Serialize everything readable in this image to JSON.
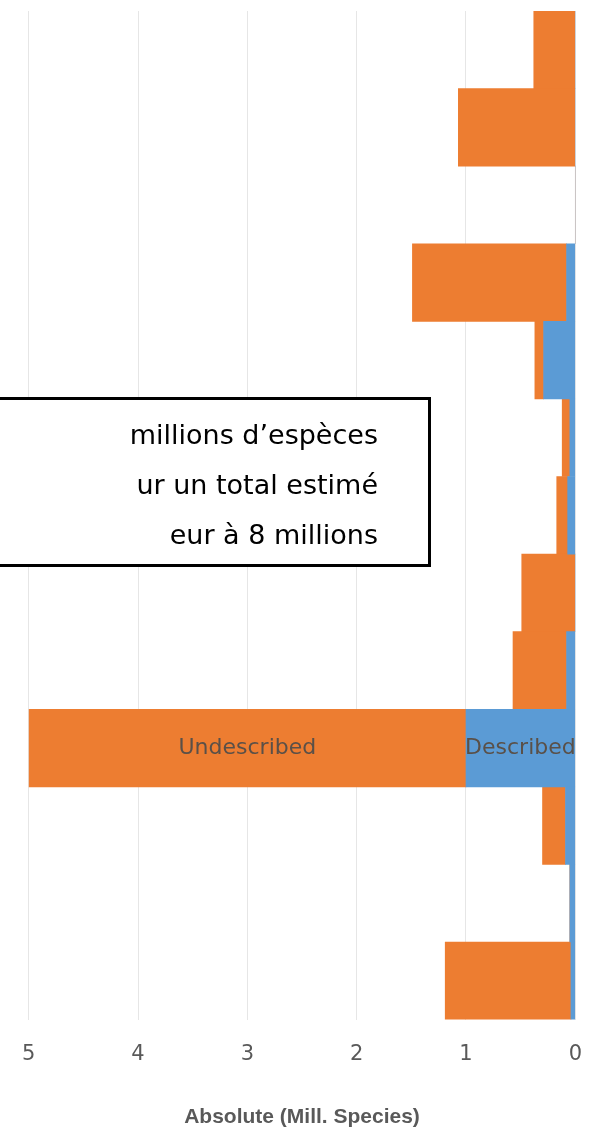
{
  "chart_data": {
    "type": "bar",
    "orientation": "horizontal",
    "stacked": true,
    "xlabel": "Absolute (Mill. Species)",
    "categories": [
      null,
      null,
      null,
      null,
      null,
      null,
      null,
      null,
      null,
      null,
      null,
      null,
      null
    ],
    "series": [
      {
        "name": "Described",
        "color": "#5b9bd5",
        "values": [
          0,
          0,
          0,
          0.08,
          0.29,
          0.05,
          0.07,
          0,
          0.08,
          1.0,
          0.09,
          0.05,
          0.04
        ]
      },
      {
        "name": "Undescribed",
        "color": "#ed7d31",
        "values": [
          0.38,
          1.07,
          0,
          1.41,
          0.08,
          0.07,
          0.1,
          0.49,
          0.49,
          4.0,
          0.21,
          0,
          1.15
        ]
      }
    ],
    "xlim": [
      5,
      0
    ],
    "xticks": [
      5,
      4,
      3,
      2,
      1,
      0
    ],
    "grid": "x",
    "tick_labels": "x",
    "legend": false,
    "annotations": [
      "millions d’espèces\nur un total estimé\neur à 8 millions"
    ]
  }
}
